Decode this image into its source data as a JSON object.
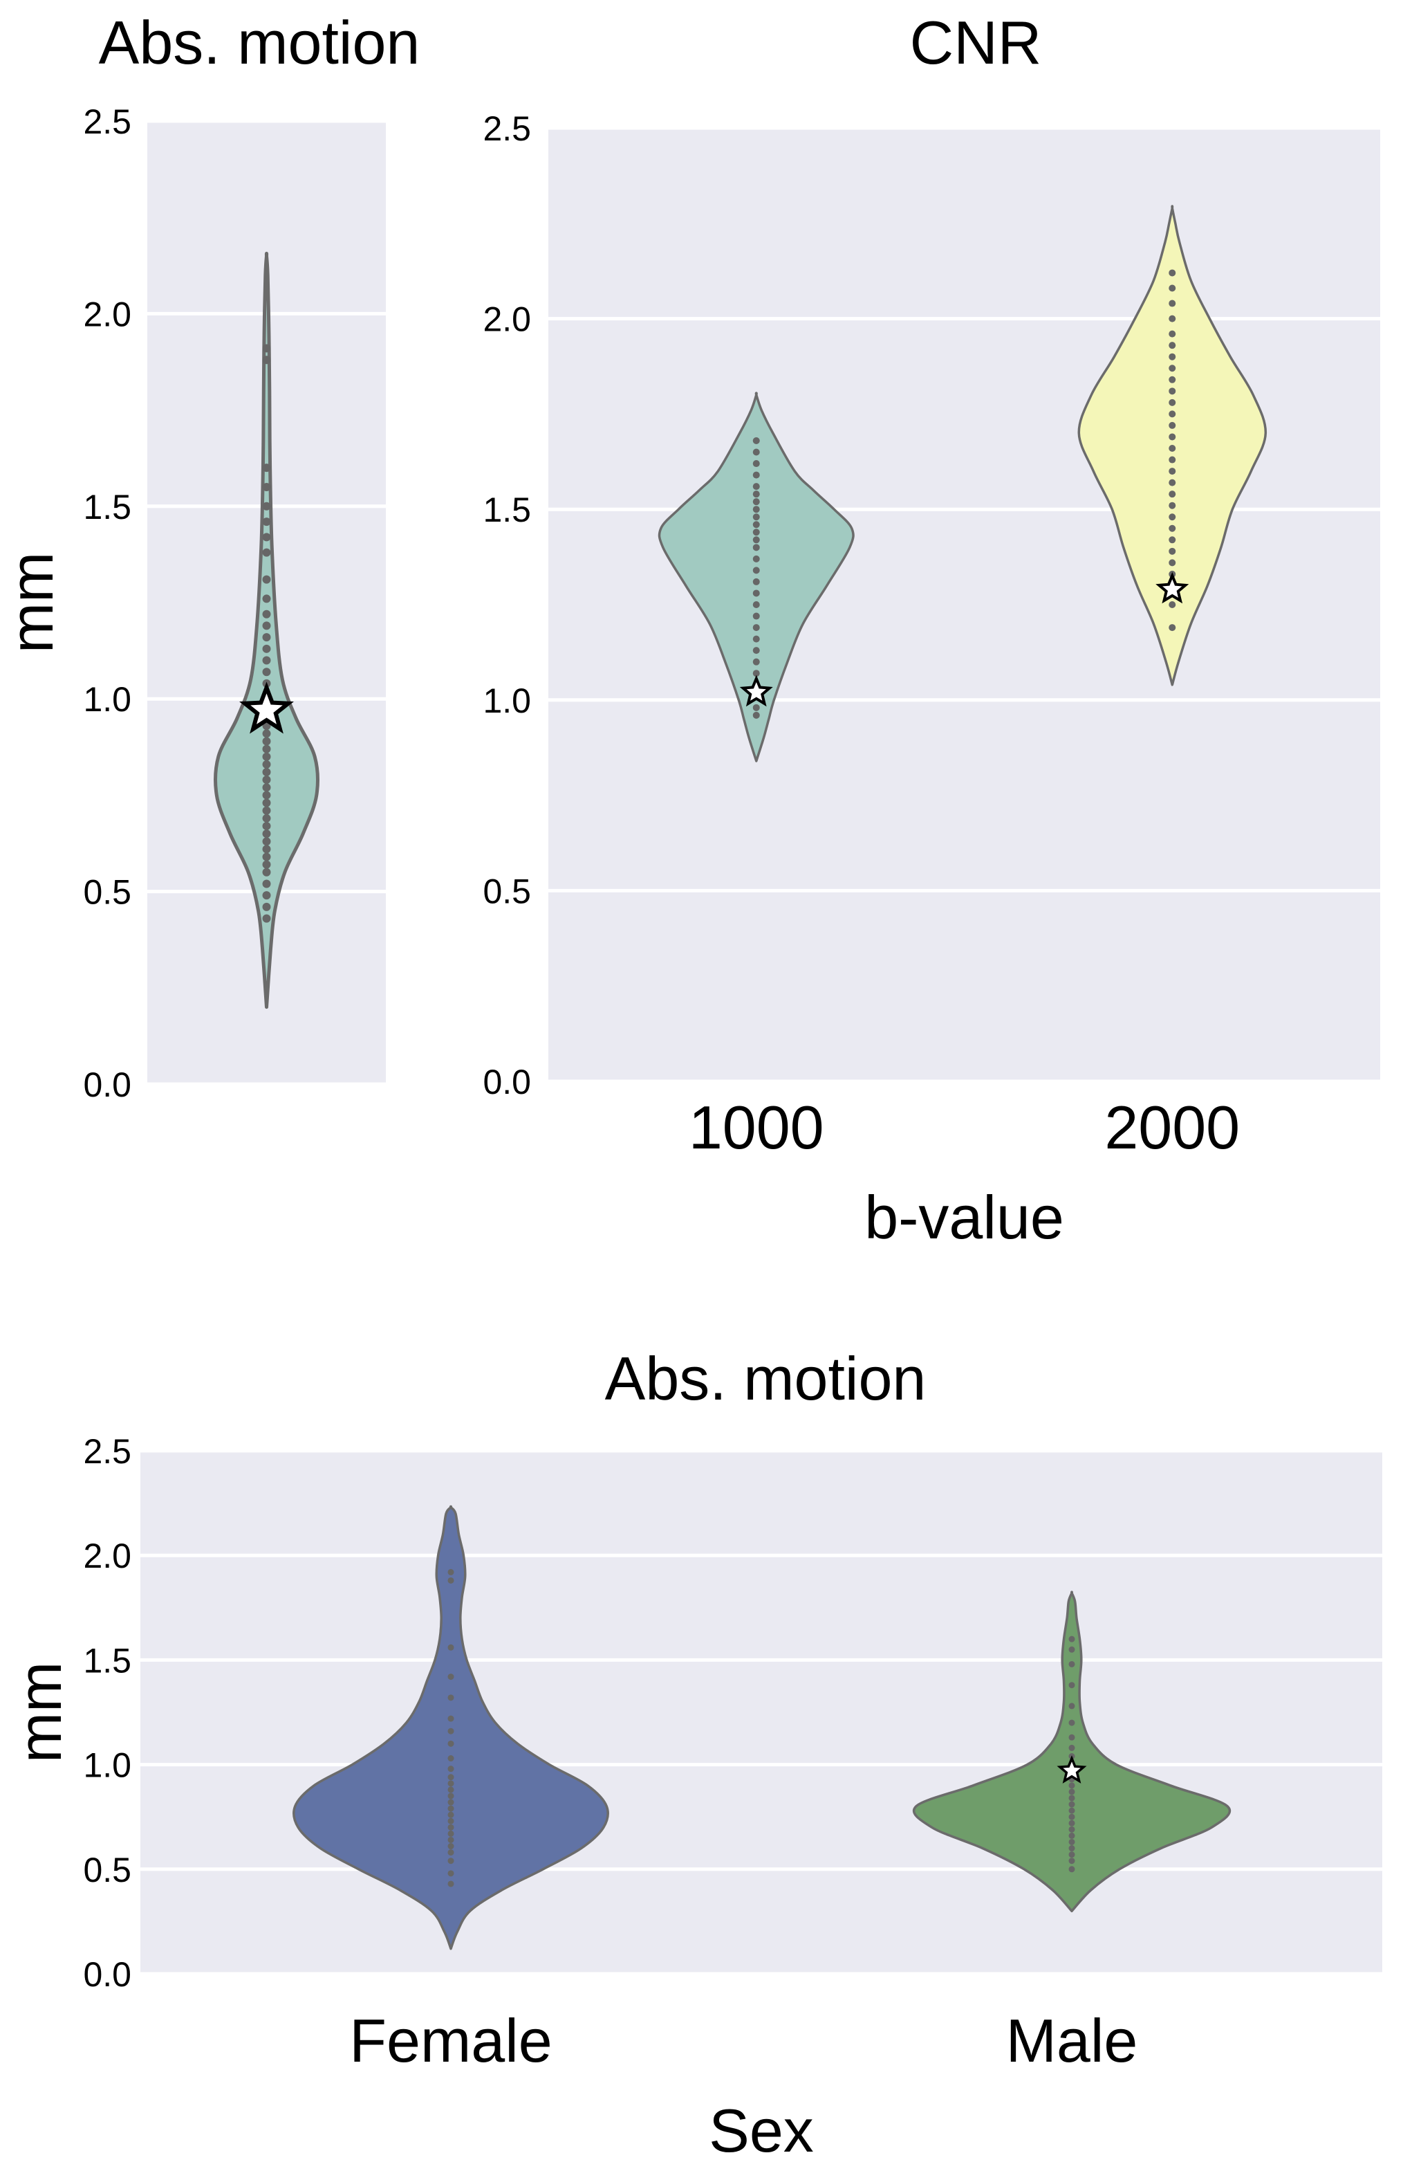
{
  "style": {
    "background": "#eaeaf2",
    "grid": "#ffffff",
    "outline": "#6b6b6b",
    "point": "#666666",
    "star_fill": "#ffffff",
    "star_stroke": "#000000"
  },
  "chart_data": [
    {
      "type": "violin",
      "title": "Abs. motion",
      "xlabel": "",
      "ylabel": "mm",
      "ylim": [
        0,
        2.5
      ],
      "yticks": [
        "0.0",
        "0.5",
        "1.0",
        "1.5",
        "2.0",
        "2.5"
      ],
      "grid": true,
      "categories": [
        ""
      ],
      "series": [
        {
          "color": "#a1cac1",
          "density": [
            [
              0.2,
              0.0
            ],
            [
              0.35,
              0.07
            ],
            [
              0.45,
              0.14
            ],
            [
              0.55,
              0.31
            ],
            [
              0.65,
              0.62
            ],
            [
              0.75,
              0.85
            ],
            [
              0.85,
              0.82
            ],
            [
              0.95,
              0.5
            ],
            [
              1.05,
              0.27
            ],
            [
              1.2,
              0.16
            ],
            [
              1.4,
              0.09
            ],
            [
              1.6,
              0.06
            ],
            [
              1.8,
              0.05
            ],
            [
              1.95,
              0.04
            ],
            [
              2.1,
              0.02
            ],
            [
              2.15,
              0.0
            ]
          ],
          "points": [
            0.43,
            0.46,
            0.49,
            0.52,
            0.55,
            0.57,
            0.59,
            0.61,
            0.63,
            0.65,
            0.67,
            0.69,
            0.71,
            0.73,
            0.75,
            0.77,
            0.79,
            0.81,
            0.83,
            0.85,
            0.87,
            0.89,
            0.91,
            0.93,
            0.95,
            0.98,
            1.01,
            1.04,
            1.07,
            1.1,
            1.13,
            1.16,
            1.19,
            1.22,
            1.26,
            1.31,
            1.38,
            1.42,
            1.46,
            1.5,
            1.55,
            1.6,
            1.88,
            1.91
          ],
          "star": 0.97
        }
      ]
    },
    {
      "type": "violin",
      "title": "CNR",
      "xlabel": "b-value",
      "ylabel": "",
      "ylim": [
        0,
        2.5
      ],
      "yticks": [
        "0.0",
        "0.5",
        "1.0",
        "1.5",
        "2.0",
        "2.5"
      ],
      "grid": true,
      "categories": [
        "1000",
        "2000"
      ],
      "series": [
        {
          "color": "#a1cac1",
          "density": [
            [
              0.84,
              0.0
            ],
            [
              0.9,
              0.07
            ],
            [
              0.95,
              0.12
            ],
            [
              1.0,
              0.17
            ],
            [
              1.1,
              0.3
            ],
            [
              1.2,
              0.45
            ],
            [
              1.3,
              0.68
            ],
            [
              1.4,
              0.9
            ],
            [
              1.45,
              0.92
            ],
            [
              1.5,
              0.75
            ],
            [
              1.55,
              0.55
            ],
            [
              1.6,
              0.37
            ],
            [
              1.7,
              0.16
            ],
            [
              1.76,
              0.05
            ],
            [
              1.8,
              0.0
            ]
          ],
          "points": [
            0.96,
            0.98,
            1.01,
            1.04,
            1.07,
            1.1,
            1.13,
            1.16,
            1.19,
            1.22,
            1.25,
            1.28,
            1.31,
            1.34,
            1.37,
            1.4,
            1.42,
            1.44,
            1.46,
            1.48,
            1.5,
            1.52,
            1.54,
            1.56,
            1.59,
            1.62,
            1.65,
            1.68
          ],
          "star": 1.02
        },
        {
          "color": "#f4f6b8",
          "density": [
            [
              1.04,
              0.0
            ],
            [
              1.1,
              0.06
            ],
            [
              1.2,
              0.18
            ],
            [
              1.3,
              0.34
            ],
            [
              1.4,
              0.47
            ],
            [
              1.5,
              0.58
            ],
            [
              1.6,
              0.76
            ],
            [
              1.7,
              0.9
            ],
            [
              1.8,
              0.78
            ],
            [
              1.9,
              0.56
            ],
            [
              2.0,
              0.36
            ],
            [
              2.1,
              0.18
            ],
            [
              2.2,
              0.07
            ],
            [
              2.25,
              0.03
            ],
            [
              2.29,
              0.0
            ]
          ],
          "points": [
            1.19,
            1.25,
            1.29,
            1.33,
            1.36,
            1.39,
            1.42,
            1.45,
            1.48,
            1.51,
            1.54,
            1.57,
            1.6,
            1.63,
            1.66,
            1.69,
            1.72,
            1.75,
            1.78,
            1.81,
            1.84,
            1.87,
            1.9,
            1.93,
            1.96,
            2.0,
            2.04,
            2.08,
            2.12
          ],
          "star": 1.29
        }
      ]
    },
    {
      "type": "violin",
      "title": "Abs. motion",
      "xlabel": "Sex",
      "ylabel": "mm",
      "ylim": [
        0,
        2.5
      ],
      "yticks": [
        "0.0",
        "0.5",
        "1.0",
        "1.5",
        "2.0",
        "2.5"
      ],
      "grid": true,
      "categories": [
        "Female",
        "Male"
      ],
      "series": [
        {
          "color": "#6173a5",
          "density": [
            [
              0.12,
              0.0
            ],
            [
              0.2,
              0.04
            ],
            [
              0.3,
              0.12
            ],
            [
              0.4,
              0.32
            ],
            [
              0.5,
              0.58
            ],
            [
              0.6,
              0.82
            ],
            [
              0.7,
              0.96
            ],
            [
              0.8,
              0.98
            ],
            [
              0.9,
              0.86
            ],
            [
              1.0,
              0.62
            ],
            [
              1.1,
              0.42
            ],
            [
              1.2,
              0.28
            ],
            [
              1.3,
              0.2
            ],
            [
              1.4,
              0.15
            ],
            [
              1.5,
              0.1
            ],
            [
              1.6,
              0.07
            ],
            [
              1.7,
              0.06
            ],
            [
              1.8,
              0.07
            ],
            [
              1.9,
              0.09
            ],
            [
              2.0,
              0.08
            ],
            [
              2.1,
              0.05
            ],
            [
              2.2,
              0.03
            ],
            [
              2.23,
              0.0
            ]
          ],
          "points": [
            0.43,
            0.48,
            0.54,
            0.58,
            0.61,
            0.64,
            0.67,
            0.7,
            0.73,
            0.76,
            0.79,
            0.82,
            0.85,
            0.88,
            0.91,
            0.94,
            0.98,
            1.03,
            1.1,
            1.16,
            1.22,
            1.32,
            1.42,
            1.56,
            1.88,
            1.92
          ],
          "star": null
        },
        {
          "color": "#6f9d6a",
          "density": [
            [
              0.3,
              0.0
            ],
            [
              0.4,
              0.12
            ],
            [
              0.5,
              0.3
            ],
            [
              0.6,
              0.56
            ],
            [
              0.7,
              0.88
            ],
            [
              0.8,
              0.98
            ],
            [
              0.9,
              0.62
            ],
            [
              1.0,
              0.28
            ],
            [
              1.1,
              0.13
            ],
            [
              1.2,
              0.07
            ],
            [
              1.3,
              0.05
            ],
            [
              1.4,
              0.05
            ],
            [
              1.5,
              0.06
            ],
            [
              1.6,
              0.05
            ],
            [
              1.7,
              0.03
            ],
            [
              1.78,
              0.02
            ],
            [
              1.82,
              0.0
            ]
          ],
          "points": [
            0.5,
            0.54,
            0.57,
            0.6,
            0.63,
            0.66,
            0.69,
            0.72,
            0.75,
            0.78,
            0.81,
            0.84,
            0.87,
            0.9,
            0.93,
            0.96,
            1.0,
            1.04,
            1.08,
            1.13,
            1.2,
            1.28,
            1.38,
            1.48,
            1.55,
            1.6
          ],
          "star": 0.97
        }
      ]
    }
  ]
}
